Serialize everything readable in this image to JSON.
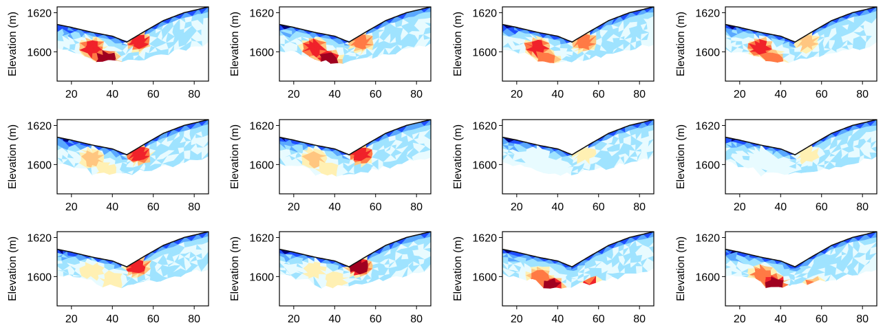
{
  "figure": {
    "rows": 3,
    "cols": 4
  },
  "chart_data": {
    "type": "heatmap",
    "description_kind": "resistivity-style tomography panels",
    "ylabel": "Elevation (m)",
    "xlim": [
      13,
      87
    ],
    "ylim": [
      1585,
      1623
    ],
    "xticks": [
      20,
      40,
      60,
      80
    ],
    "yticks": [
      1600,
      1620
    ],
    "xtick_labels": [
      "20",
      "40",
      "60",
      "80"
    ],
    "ytick_labels": [
      "1600",
      "1620"
    ],
    "colormap": [
      "#00007f",
      "#1f4fff",
      "#5aa8ff",
      "#9fe3ff",
      "#e8fbff",
      "#fff0b3",
      "#ffc680",
      "#ff7a45",
      "#f0222a",
      "#a00020"
    ],
    "topography": {
      "x": [
        13,
        20,
        30,
        40,
        47,
        55,
        65,
        75,
        87
      ],
      "y": [
        1614,
        1612.5,
        1610,
        1608,
        1605,
        1610,
        1616,
        1620,
        1623
      ]
    },
    "panels": [
      {
        "row": 1,
        "col": 1,
        "anomaly_x": [
          30,
          37,
          53
        ],
        "anomaly_y": [
          1602,
          1596,
          1605
        ],
        "anomaly_level": [
          8,
          9,
          8
        ]
      },
      {
        "row": 1,
        "col": 2,
        "anomaly_x": [
          30,
          37,
          53
        ],
        "anomaly_y": [
          1602,
          1596,
          1605
        ],
        "anomaly_level": [
          8,
          9,
          7
        ]
      },
      {
        "row": 1,
        "col": 3,
        "anomaly_x": [
          30,
          35,
          53
        ],
        "anomaly_y": [
          1602,
          1596,
          1605
        ],
        "anomaly_level": [
          8,
          7,
          7
        ]
      },
      {
        "row": 1,
        "col": 4,
        "anomaly_x": [
          30,
          36,
          53
        ],
        "anomaly_y": [
          1602,
          1596,
          1605
        ],
        "anomaly_level": [
          8,
          7,
          6
        ]
      },
      {
        "row": 2,
        "col": 1,
        "anomaly_x": [
          30,
          37,
          53
        ],
        "anomaly_y": [
          1603,
          1597,
          1605
        ],
        "anomaly_level": [
          6,
          5,
          8
        ]
      },
      {
        "row": 2,
        "col": 2,
        "anomaly_x": [
          30,
          37,
          53
        ],
        "anomaly_y": [
          1603,
          1597,
          1605
        ],
        "anomaly_level": [
          6,
          5,
          8
        ]
      },
      {
        "row": 2,
        "col": 3,
        "anomaly_x": [
          30,
          40,
          53
        ],
        "anomaly_y": [
          1603,
          1598,
          1605
        ],
        "anomaly_level": [
          4,
          4,
          5
        ]
      },
      {
        "row": 2,
        "col": 4,
        "anomaly_x": [
          30,
          40,
          53
        ],
        "anomaly_y": [
          1603,
          1598,
          1605
        ],
        "anomaly_level": [
          4,
          4,
          5
        ]
      },
      {
        "row": 3,
        "col": 1,
        "anomaly_x": [
          30,
          40,
          52
        ],
        "anomaly_y": [
          1603,
          1598,
          1605
        ],
        "anomaly_level": [
          5,
          5,
          8
        ]
      },
      {
        "row": 3,
        "col": 2,
        "anomaly_x": [
          30,
          40,
          52
        ],
        "anomaly_y": [
          1603,
          1598,
          1605
        ],
        "anomaly_level": [
          5,
          5,
          9
        ]
      },
      {
        "row": 3,
        "col": 3,
        "anomaly_x": [
          31,
          37,
          57
        ],
        "anomaly_y": [
          1600,
          1595,
          1594
        ],
        "anomaly_level": [
          7,
          9,
          9
        ]
      },
      {
        "row": 3,
        "col": 4,
        "anomaly_x": [
          31,
          37,
          57
        ],
        "anomaly_y": [
          1601,
          1596,
          1594
        ],
        "anomaly_level": [
          7,
          9,
          9
        ]
      }
    ]
  }
}
